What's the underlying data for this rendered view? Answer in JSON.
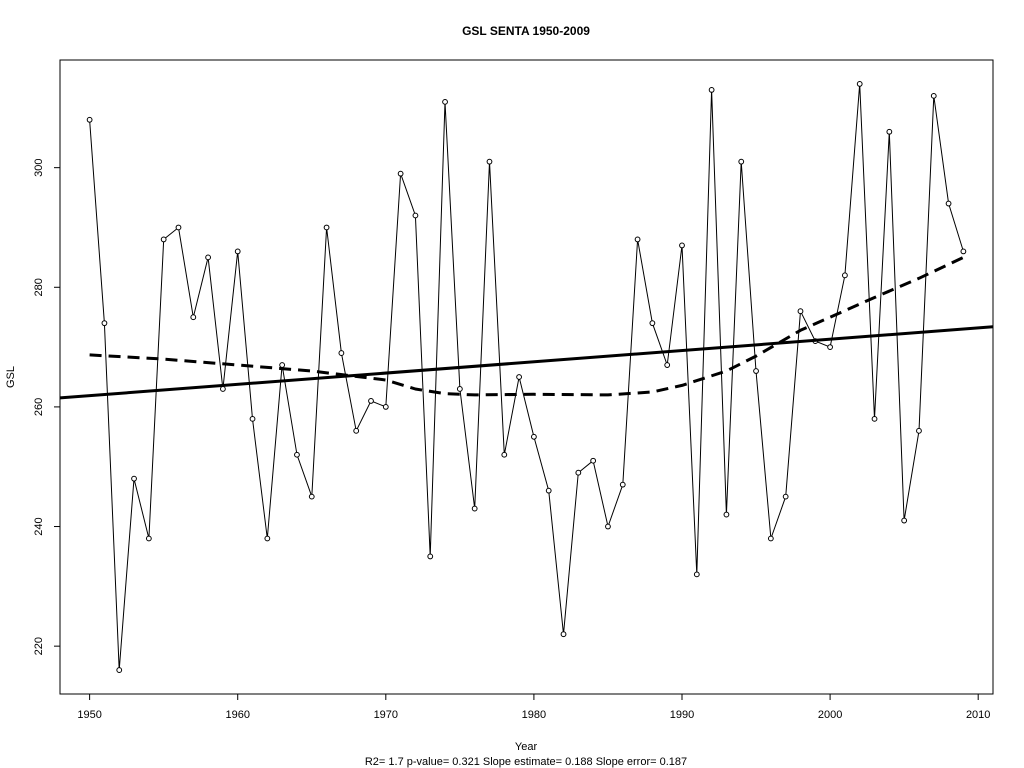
{
  "chart_data": {
    "type": "line",
    "title": "GSL   SENTA 1950-2009",
    "xlabel": "Year",
    "ylabel": "GSL",
    "subtitle": "R2= 1.7  p-value= 0.321  Slope estimate= 0.188  Slope error= 0.187",
    "xlim": [
      1948,
      2011
    ],
    "ylim": [
      212,
      318
    ],
    "x_ticks": [
      1950,
      1960,
      1970,
      1980,
      1990,
      2000,
      2010
    ],
    "y_ticks": [
      220,
      240,
      260,
      280,
      300
    ],
    "grid": false,
    "legend": "none",
    "series": [
      {
        "style": "line-with-open-points",
        "x": [
          1950,
          1951,
          1952,
          1953,
          1954,
          1955,
          1956,
          1957,
          1958,
          1959,
          1960,
          1961,
          1962,
          1963,
          1964,
          1965,
          1966,
          1967,
          1968,
          1969,
          1970,
          1971,
          1972,
          1973,
          1974,
          1975,
          1976,
          1977,
          1978,
          1979,
          1980,
          1981,
          1982,
          1983,
          1984,
          1985,
          1986,
          1987,
          1988,
          1989,
          1990,
          1991,
          1992,
          1993,
          1994,
          1995,
          1996,
          1997,
          1998,
          1999,
          2000,
          2001,
          2002,
          2003,
          2004,
          2005,
          2006,
          2007,
          2008,
          2009
        ],
        "y": [
          308,
          274,
          216,
          248,
          238,
          288,
          290,
          275,
          285,
          263,
          286,
          258,
          238,
          267,
          252,
          245,
          290,
          269,
          256,
          261,
          260,
          299,
          292,
          235,
          311,
          263,
          243,
          301,
          252,
          265,
          255,
          246,
          222,
          249,
          251,
          240,
          247,
          288,
          274,
          267,
          287,
          232,
          313,
          242,
          301,
          266,
          238,
          245,
          276,
          271,
          270,
          282,
          314,
          258,
          306,
          241,
          256,
          312,
          294,
          286
        ]
      },
      {
        "style": "solid-thick",
        "x": [
          1948,
          2011
        ],
        "y": [
          261.5,
          273.4
        ]
      },
      {
        "style": "dashed-thick",
        "x": [
          1950,
          1955,
          1960,
          1965,
          1970,
          1972,
          1974,
          1976,
          1980,
          1985,
          1988,
          1990,
          1993,
          1995,
          1998,
          2000,
          2003,
          2006,
          2009
        ],
        "y": [
          268.7,
          268,
          267,
          266,
          264.5,
          263,
          262.2,
          262,
          262.1,
          262,
          262.5,
          263.6,
          266,
          268.5,
          272.8,
          275,
          278.3,
          281.5,
          285
        ]
      }
    ]
  }
}
